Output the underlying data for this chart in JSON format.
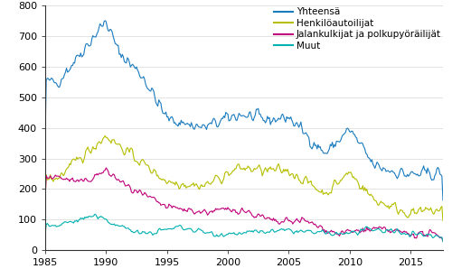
{
  "title": "",
  "xlim": [
    1985.0,
    2017.67
  ],
  "ylim": [
    0,
    800
  ],
  "yticks": [
    0,
    100,
    200,
    300,
    400,
    500,
    600,
    700,
    800
  ],
  "xticks": [
    1985,
    1990,
    1995,
    2000,
    2005,
    2010,
    2015
  ],
  "legend_labels": [
    "Yhteensä",
    "Henkilöautoilijat",
    "Jalankulkijat ja polkupyöräilijät",
    "Muut"
  ],
  "colors": [
    "#1a7bbf",
    "#b5be00",
    "#c0007a",
    "#00b0b0"
  ],
  "linewidth": 0.8,
  "background_color": "#ffffff",
  "grid_color": "#d8d8d8",
  "legend_fontsize": 7.5,
  "axis_fontsize": 8
}
